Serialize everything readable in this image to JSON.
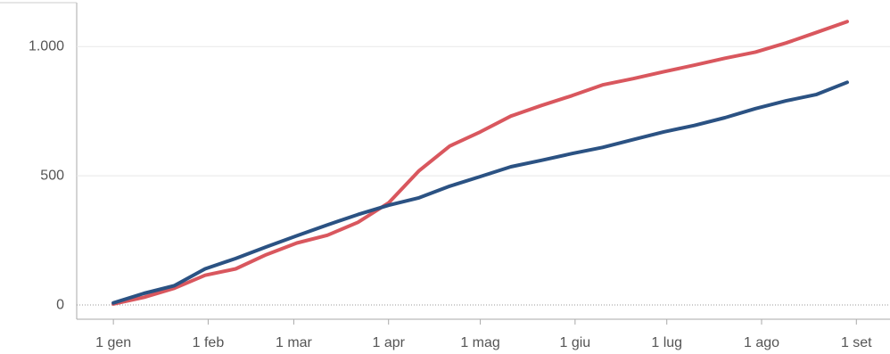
{
  "chart_data": {
    "type": "line",
    "x": [
      0,
      10,
      20,
      30,
      40,
      50,
      60,
      70,
      80,
      90,
      100,
      110,
      120,
      130,
      140,
      150,
      160,
      170,
      180,
      190,
      200,
      210,
      220,
      230,
      240
    ],
    "series": [
      {
        "color": "#d9575e",
        "values": [
          4,
          30,
          65,
          115,
          140,
          195,
          240,
          270,
          320,
          395,
          520,
          615,
          670,
          731,
          772,
          810,
          852,
          876,
          903,
          928,
          955,
          979,
          1014,
          1055,
          1097
        ]
      },
      {
        "color": "#2b5283",
        "values": [
          8,
          45,
          75,
          140,
          180,
          225,
          268,
          310,
          350,
          386,
          415,
          460,
          497,
          535,
          560,
          586,
          610,
          640,
          670,
          695,
          725,
          760,
          790,
          815,
          862
        ]
      }
    ],
    "xlim": [
      -12,
      254
    ],
    "xticks": [
      {
        "value": 0,
        "label": "1 gen"
      },
      {
        "value": 31,
        "label": "1 feb"
      },
      {
        "value": 59,
        "label": "1 mar"
      },
      {
        "value": 90,
        "label": "1 apr"
      },
      {
        "value": 120,
        "label": "1 mag"
      },
      {
        "value": 151,
        "label": "1 giu"
      },
      {
        "value": 181,
        "label": "1 lug"
      },
      {
        "value": 212,
        "label": "1 ago"
      },
      {
        "value": 243,
        "label": "1 set"
      }
    ],
    "ylim": [
      -55,
      1170
    ],
    "yticks": [
      0,
      500,
      {
        "value": 1000,
        "label": "1.000"
      }
    ],
    "grid": true
  }
}
